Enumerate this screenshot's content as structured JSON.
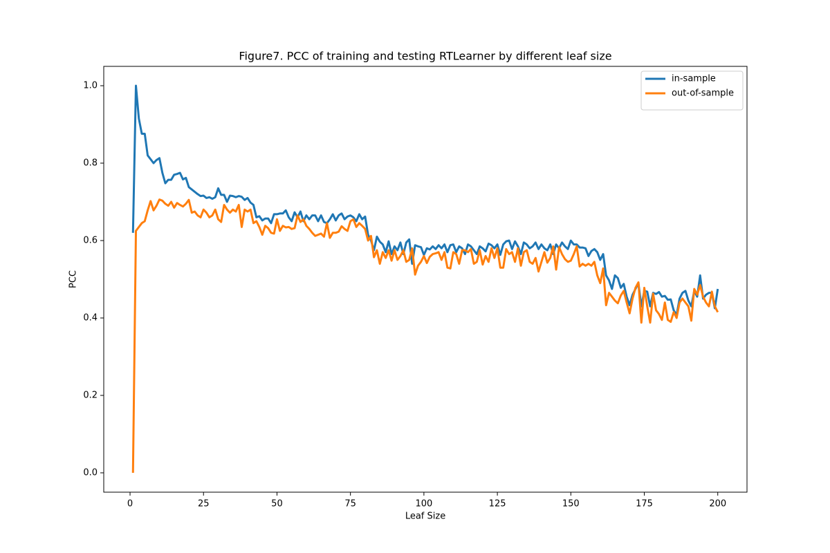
{
  "chart_data": {
    "type": "line",
    "title": "Figure7. PCC of training and testing RTLearner by different leaf size",
    "xlabel": "Leaf Size",
    "ylabel": "PCC",
    "x": [
      1,
      2,
      3,
      4,
      5,
      6,
      7,
      8,
      9,
      10,
      11,
      12,
      13,
      14,
      15,
      16,
      17,
      18,
      19,
      20,
      21,
      22,
      23,
      24,
      25,
      26,
      27,
      28,
      29,
      30,
      31,
      32,
      33,
      34,
      35,
      36,
      37,
      38,
      39,
      40,
      41,
      42,
      43,
      44,
      45,
      46,
      47,
      48,
      49,
      50,
      51,
      52,
      53,
      54,
      55,
      56,
      57,
      58,
      59,
      60,
      61,
      62,
      63,
      64,
      65,
      66,
      67,
      68,
      69,
      70,
      71,
      72,
      73,
      74,
      75,
      76,
      77,
      78,
      79,
      80,
      81,
      82,
      83,
      84,
      85,
      86,
      87,
      88,
      89,
      90,
      91,
      92,
      93,
      94,
      95,
      96,
      97,
      98,
      99,
      100,
      101,
      102,
      103,
      104,
      105,
      106,
      107,
      108,
      109,
      110,
      111,
      112,
      113,
      114,
      115,
      116,
      117,
      118,
      119,
      120,
      121,
      122,
      123,
      124,
      125,
      126,
      127,
      128,
      129,
      130,
      131,
      132,
      133,
      134,
      135,
      136,
      137,
      138,
      139,
      140,
      141,
      142,
      143,
      144,
      145,
      146,
      147,
      148,
      149,
      150,
      151,
      152,
      153,
      154,
      155,
      156,
      157,
      158,
      159,
      160,
      161,
      162,
      163,
      164,
      165,
      166,
      167,
      168,
      169,
      170,
      171,
      172,
      173,
      174,
      175,
      176,
      177,
      178,
      179,
      180,
      181,
      182,
      183,
      184,
      185,
      186,
      187,
      188,
      189,
      190,
      191,
      192,
      193,
      194,
      195,
      196,
      197,
      198,
      199,
      200
    ],
    "series": [
      {
        "name": "in-sample",
        "color": "#1f77b4",
        "values": [
          0.62,
          1.0,
          0.915,
          0.876,
          0.876,
          0.82,
          0.81,
          0.8,
          0.808,
          0.813,
          0.775,
          0.748,
          0.757,
          0.757,
          0.77,
          0.772,
          0.775,
          0.758,
          0.762,
          0.738,
          0.732,
          0.726,
          0.72,
          0.715,
          0.716,
          0.71,
          0.712,
          0.708,
          0.712,
          0.735,
          0.718,
          0.718,
          0.7,
          0.716,
          0.715,
          0.712,
          0.715,
          0.713,
          0.705,
          0.71,
          0.698,
          0.692,
          0.66,
          0.663,
          0.652,
          0.657,
          0.657,
          0.645,
          0.668,
          0.668,
          0.67,
          0.67,
          0.678,
          0.66,
          0.65,
          0.673,
          0.66,
          0.675,
          0.65,
          0.665,
          0.655,
          0.665,
          0.665,
          0.65,
          0.665,
          0.648,
          0.645,
          0.655,
          0.668,
          0.652,
          0.665,
          0.67,
          0.655,
          0.662,
          0.665,
          0.66,
          0.65,
          0.668,
          0.655,
          0.662,
          0.615,
          0.6,
          0.575,
          0.61,
          0.597,
          0.59,
          0.57,
          0.598,
          0.565,
          0.585,
          0.575,
          0.595,
          0.565,
          0.595,
          0.603,
          0.54,
          0.588,
          0.585,
          0.583,
          0.563,
          0.58,
          0.577,
          0.585,
          0.578,
          0.588,
          0.58,
          0.59,
          0.57,
          0.588,
          0.59,
          0.57,
          0.585,
          0.58,
          0.565,
          0.59,
          0.585,
          0.575,
          0.565,
          0.585,
          0.58,
          0.572,
          0.592,
          0.588,
          0.58,
          0.59,
          0.563,
          0.59,
          0.598,
          0.6,
          0.578,
          0.598,
          0.585,
          0.565,
          0.595,
          0.59,
          0.58,
          0.585,
          0.595,
          0.578,
          0.59,
          0.58,
          0.575,
          0.59,
          0.565,
          0.59,
          0.58,
          0.595,
          0.585,
          0.578,
          0.6,
          0.59,
          0.59,
          0.582,
          0.582,
          0.58,
          0.56,
          0.573,
          0.578,
          0.57,
          0.55,
          0.565,
          0.51,
          0.497,
          0.475,
          0.51,
          0.503,
          0.478,
          0.488,
          0.455,
          0.433,
          0.46,
          0.475,
          0.49,
          0.43,
          0.47,
          0.468,
          0.43,
          0.465,
          0.462,
          0.467,
          0.455,
          0.457,
          0.447,
          0.448,
          0.42,
          0.408,
          0.45,
          0.465,
          0.47,
          0.445,
          0.43,
          0.47,
          0.455,
          0.51,
          0.45,
          0.46,
          0.465,
          0.465,
          0.425,
          0.475
        ]
      },
      {
        "name": "out-of-sample",
        "color": "#ff7f0e",
        "values": [
          0.0,
          0.625,
          0.635,
          0.645,
          0.65,
          0.678,
          0.702,
          0.678,
          0.69,
          0.706,
          0.703,
          0.695,
          0.69,
          0.7,
          0.685,
          0.697,
          0.692,
          0.688,
          0.695,
          0.705,
          0.672,
          0.675,
          0.665,
          0.66,
          0.68,
          0.672,
          0.66,
          0.665,
          0.68,
          0.655,
          0.648,
          0.692,
          0.68,
          0.672,
          0.68,
          0.675,
          0.692,
          0.635,
          0.68,
          0.675,
          0.68,
          0.645,
          0.65,
          0.635,
          0.615,
          0.638,
          0.632,
          0.62,
          0.618,
          0.655,
          0.625,
          0.638,
          0.634,
          0.635,
          0.63,
          0.632,
          0.665,
          0.648,
          0.655,
          0.638,
          0.63,
          0.62,
          0.612,
          0.615,
          0.618,
          0.61,
          0.645,
          0.607,
          0.62,
          0.62,
          0.623,
          0.637,
          0.63,
          0.625,
          0.65,
          0.655,
          0.635,
          0.645,
          0.638,
          0.63,
          0.6,
          0.612,
          0.557,
          0.575,
          0.54,
          0.57,
          0.555,
          0.575,
          0.548,
          0.575,
          0.55,
          0.56,
          0.575,
          0.545,
          0.55,
          0.58,
          0.512,
          0.535,
          0.545,
          0.56,
          0.542,
          0.558,
          0.565,
          0.567,
          0.57,
          0.55,
          0.57,
          0.53,
          0.528,
          0.57,
          0.565,
          0.54,
          0.575,
          0.575,
          0.57,
          0.578,
          0.54,
          0.545,
          0.575,
          0.538,
          0.56,
          0.545,
          0.58,
          0.555,
          0.58,
          0.53,
          0.53,
          0.578,
          0.565,
          0.57,
          0.545,
          0.58,
          0.535,
          0.57,
          0.575,
          0.545,
          0.54,
          0.555,
          0.52,
          0.545,
          0.57,
          0.543,
          0.555,
          0.585,
          0.525,
          0.583,
          0.565,
          0.552,
          0.545,
          0.548,
          0.565,
          0.585,
          0.533,
          0.54,
          0.535,
          0.54,
          0.535,
          0.545,
          0.51,
          0.49,
          0.528,
          0.433,
          0.465,
          0.455,
          0.445,
          0.438,
          0.458,
          0.47,
          0.44,
          0.412,
          0.45,
          0.478,
          0.492,
          0.388,
          0.478,
          0.43,
          0.388,
          0.463,
          0.42,
          0.41,
          0.395,
          0.44,
          0.395,
          0.39,
          0.415,
          0.4,
          0.44,
          0.45,
          0.44,
          0.43,
          0.393,
          0.475,
          0.46,
          0.485,
          0.455,
          0.44,
          0.43,
          0.468,
          0.43,
          0.415
        ]
      }
    ],
    "xlim": [
      -8.95,
      209.95
    ],
    "xticks": [
      0,
      25,
      50,
      75,
      100,
      125,
      150,
      175,
      200
    ],
    "ylim": [
      -0.05,
      1.05
    ],
    "yticks": [
      {
        "value": 0,
        "label": "0.0"
      },
      0.2,
      0.4,
      0.6,
      0.8,
      {
        "value": 1,
        "label": "1.0"
      }
    ],
    "legend": "upper right",
    "grid": false
  }
}
